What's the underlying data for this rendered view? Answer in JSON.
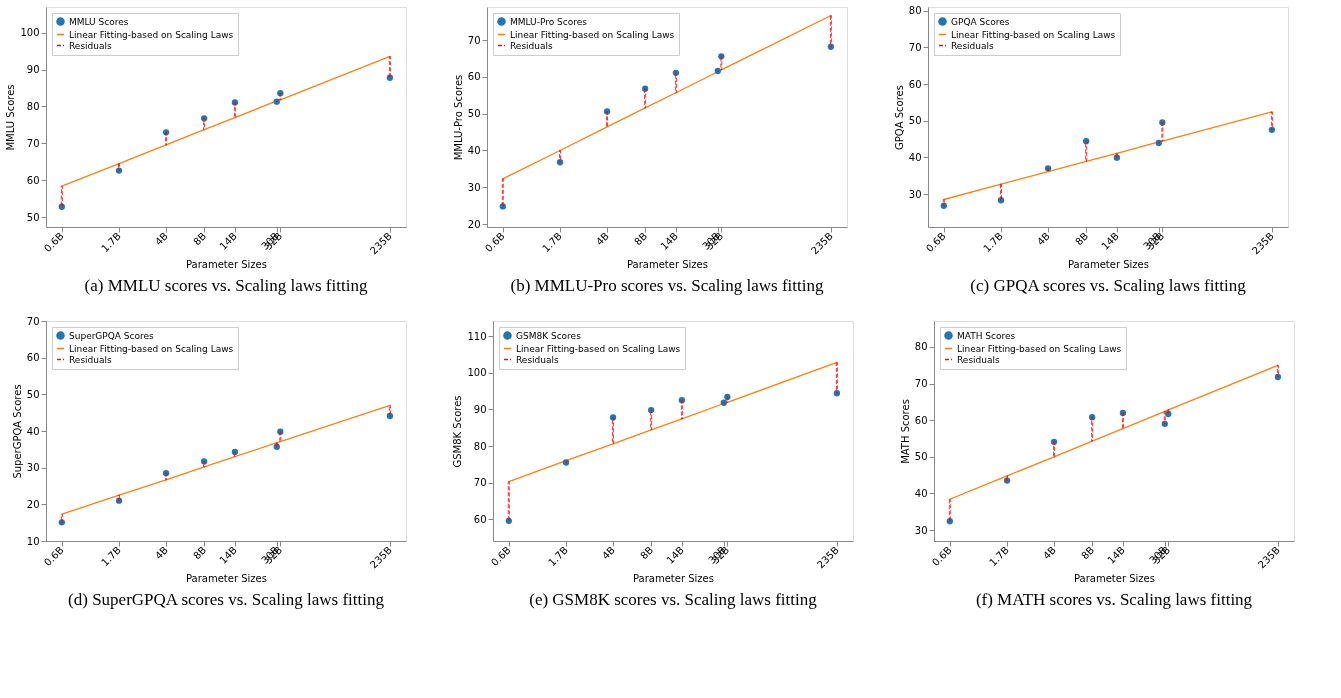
{
  "chart_data": [
    {
      "type": "scatter",
      "title": "(a)  MMLU scores vs. Scaling laws fitting",
      "xlabel": "Parameter Sizes",
      "ylabel": "MMLU Scores",
      "log": "x",
      "legend": "top left",
      "grid": false,
      "x": [
        0.6,
        1.7,
        4,
        8,
        14,
        30,
        32,
        235
      ],
      "xlim": [
        0.45,
        315
      ],
      "xticks": [
        {
          "value": 0.6,
          "label": "0.6B"
        },
        {
          "value": 1.7,
          "label": "1.7B"
        },
        {
          "value": 4,
          "label": "4B"
        },
        {
          "value": 8,
          "label": "8B"
        },
        {
          "value": 14,
          "label": "14B"
        },
        {
          "value": 30,
          "label": "30B"
        },
        {
          "value": 32,
          "label": "32B"
        },
        {
          "value": 235,
          "label": "235B"
        }
      ],
      "ylim": [
        47.3,
        107
      ],
      "yticks": [
        50,
        60,
        70,
        80,
        90,
        100
      ],
      "series": [
        {
          "name": "MMLU Scores",
          "type": "scatter",
          "marker": "circle",
          "color": "#1f77b4",
          "values": [
            52.8,
            62.6,
            73.0,
            76.8,
            81.1,
            81.3,
            83.6,
            87.8
          ]
        },
        {
          "name": "Linear Fitting-based on Scaling Laws",
          "type": "line",
          "color": "#ff7f0e",
          "values": [
            58.4,
            64.5,
            69.6,
            73.7,
            77.0,
            81.5,
            81.8,
            93.6
          ]
        },
        {
          "name": "Residuals",
          "type": "bar",
          "color": "#ff0000",
          "line_style": "dashed",
          "base": [
            52.8,
            62.6,
            73.0,
            76.8,
            81.1,
            81.3,
            83.6,
            87.8
          ],
          "values": [
            5.6,
            1.9,
            -3.4,
            -3.1,
            -4.1,
            0.2,
            -1.8,
            5.8
          ]
        }
      ]
    },
    {
      "type": "scatter",
      "title": "(b)  MMLU-Pro scores vs. Scaling laws fitting",
      "xlabel": "Parameter Sizes",
      "ylabel": "MMLU-Pro Scores",
      "log": "x",
      "legend": "top left",
      "grid": false,
      "x": [
        0.6,
        1.7,
        4,
        8,
        14,
        30,
        32,
        235
      ],
      "xlim": [
        0.45,
        315
      ],
      "xticks": [
        {
          "value": 0.6,
          "label": "0.6B"
        },
        {
          "value": 1.7,
          "label": "1.7B"
        },
        {
          "value": 4,
          "label": "4B"
        },
        {
          "value": 8,
          "label": "8B"
        },
        {
          "value": 14,
          "label": "14B"
        },
        {
          "value": 30,
          "label": "30B"
        },
        {
          "value": 32,
          "label": "32B"
        },
        {
          "value": 235,
          "label": "235B"
        }
      ],
      "ylim": [
        19.2,
        79
      ],
      "yticks": [
        20,
        30,
        40,
        50,
        60,
        70
      ],
      "series": [
        {
          "name": "MMLU-Pro Scores",
          "type": "scatter",
          "marker": "circle",
          "color": "#1f77b4",
          "values": [
            24.8,
            36.8,
            50.6,
            56.8,
            61.1,
            61.6,
            65.6,
            68.2
          ]
        },
        {
          "name": "Linear Fitting-based on Scaling Laws",
          "type": "line",
          "color": "#ff7f0e",
          "values": [
            32.3,
            40.0,
            46.4,
            51.6,
            55.7,
            61.4,
            61.9,
            76.7
          ]
        },
        {
          "name": "Residuals",
          "type": "bar",
          "color": "#ff0000",
          "line_style": "dashed",
          "base": [
            24.8,
            36.8,
            50.6,
            56.8,
            61.1,
            61.6,
            65.6,
            68.2
          ],
          "values": [
            7.5,
            3.2,
            -4.2,
            -5.2,
            -5.4,
            -0.2,
            -3.7,
            8.5
          ]
        }
      ]
    },
    {
      "type": "scatter",
      "title": "(c)  GPQA scores vs. Scaling laws fitting",
      "xlabel": "Parameter Sizes",
      "ylabel": "GPQA Scores",
      "log": "x",
      "legend": "top left",
      "grid": false,
      "x": [
        0.6,
        1.7,
        4,
        8,
        14,
        30,
        32,
        235
      ],
      "xlim": [
        0.45,
        315
      ],
      "xticks": [
        {
          "value": 0.6,
          "label": "0.6B"
        },
        {
          "value": 1.7,
          "label": "1.7B"
        },
        {
          "value": 4,
          "label": "4B"
        },
        {
          "value": 8,
          "label": "8B"
        },
        {
          "value": 14,
          "label": "14B"
        },
        {
          "value": 30,
          "label": "30B"
        },
        {
          "value": 32,
          "label": "32B"
        },
        {
          "value": 235,
          "label": "235B"
        }
      ],
      "ylim": [
        21,
        81
      ],
      "yticks": [
        30,
        40,
        50,
        60,
        70,
        80
      ],
      "series": [
        {
          "name": "GPQA Scores",
          "type": "scatter",
          "marker": "circle",
          "color": "#1f77b4",
          "values": [
            26.8,
            28.3,
            37.0,
            44.4,
            39.9,
            43.9,
            49.5,
            47.5
          ]
        },
        {
          "name": "Linear Fitting-based on Scaling Laws",
          "type": "line",
          "color": "#ff7f0e",
          "values": [
            28.5,
            32.7,
            36.1,
            38.9,
            41.1,
            44.2,
            44.4,
            52.4
          ]
        },
        {
          "name": "Residuals",
          "type": "bar",
          "color": "#ff0000",
          "line_style": "dashed",
          "base": [
            26.8,
            28.3,
            37.0,
            44.4,
            39.9,
            43.9,
            49.5,
            47.5
          ],
          "values": [
            1.7,
            4.4,
            -0.9,
            -5.5,
            1.2,
            0.3,
            -5.1,
            4.9
          ]
        }
      ]
    },
    {
      "type": "scatter",
      "title": "(d)  SuperGPQA scores vs. Scaling laws fitting",
      "xlabel": "Parameter Sizes",
      "ylabel": "SuperGPQA Scores",
      "log": "x",
      "legend": "top left",
      "grid": false,
      "x": [
        0.6,
        1.7,
        4,
        8,
        14,
        30,
        32,
        235
      ],
      "xlim": [
        0.45,
        315
      ],
      "xticks": [
        {
          "value": 0.6,
          "label": "0.6B"
        },
        {
          "value": 1.7,
          "label": "1.7B"
        },
        {
          "value": 4,
          "label": "4B"
        },
        {
          "value": 8,
          "label": "8B"
        },
        {
          "value": 14,
          "label": "14B"
        },
        {
          "value": 30,
          "label": "30B"
        },
        {
          "value": 32,
          "label": "32B"
        },
        {
          "value": 235,
          "label": "235B"
        }
      ],
      "ylim": [
        10,
        70
      ],
      "yticks": [
        10,
        20,
        30,
        40,
        50,
        60,
        70
      ],
      "series": [
        {
          "name": "SuperGPQA Scores",
          "type": "scatter",
          "marker": "circle",
          "color": "#1f77b4",
          "values": [
            15.1,
            21.0,
            28.5,
            31.7,
            34.3,
            35.7,
            39.8,
            44.1
          ]
        },
        {
          "name": "Linear Fitting-based on Scaling Laws",
          "type": "line",
          "color": "#ff7f0e",
          "values": [
            17.3,
            22.5,
            26.7,
            30.2,
            33.0,
            36.8,
            37.1,
            47.0
          ]
        },
        {
          "name": "Residuals",
          "type": "bar",
          "color": "#ff0000",
          "line_style": "dashed",
          "base": [
            15.1,
            21.0,
            28.5,
            31.7,
            34.3,
            35.7,
            39.8,
            44.1
          ],
          "values": [
            2.2,
            1.5,
            -1.8,
            -1.5,
            -1.3,
            1.1,
            -2.7,
            2.9
          ]
        }
      ]
    },
    {
      "type": "scatter",
      "title": "(e)  GSM8K scores vs. Scaling laws fitting",
      "xlabel": "Parameter Sizes",
      "ylabel": "GSM8K Scores",
      "log": "x",
      "legend": "top left",
      "grid": false,
      "x": [
        0.6,
        1.7,
        4,
        8,
        14,
        30,
        32,
        235
      ],
      "xlim": [
        0.45,
        315
      ],
      "xticks": [
        {
          "value": 0.6,
          "label": "0.6B"
        },
        {
          "value": 1.7,
          "label": "1.7B"
        },
        {
          "value": 4,
          "label": "4B"
        },
        {
          "value": 8,
          "label": "8B"
        },
        {
          "value": 14,
          "label": "14B"
        },
        {
          "value": 30,
          "label": "30B"
        },
        {
          "value": 32,
          "label": "32B"
        },
        {
          "value": 235,
          "label": "235B"
        }
      ],
      "ylim": [
        54.1,
        114.1
      ],
      "yticks": [
        60,
        70,
        80,
        90,
        100,
        110
      ],
      "series": [
        {
          "name": "GSM8K Scores",
          "type": "scatter",
          "marker": "circle",
          "color": "#1f77b4",
          "values": [
            59.6,
            75.5,
            87.8,
            89.8,
            92.5,
            91.8,
            93.4,
            94.4
          ]
        },
        {
          "name": "Linear Fitting-based on Scaling Laws",
          "type": "line",
          "color": "#ff7f0e",
          "values": [
            70.3,
            76.0,
            80.6,
            84.4,
            87.4,
            91.6,
            91.9,
            102.8
          ]
        },
        {
          "name": "Residuals",
          "type": "bar",
          "color": "#ff0000",
          "line_style": "dashed",
          "base": [
            59.6,
            75.5,
            87.8,
            89.8,
            92.5,
            91.8,
            93.4,
            94.4
          ],
          "values": [
            10.7,
            0.5,
            -7.2,
            -5.4,
            -5.1,
            -0.2,
            -1.5,
            8.4
          ]
        }
      ]
    },
    {
      "type": "scatter",
      "title": "(f)  MATH scores vs. Scaling laws fitting",
      "xlabel": "Parameter Sizes",
      "ylabel": "MATH Scores",
      "log": "x",
      "legend": "top left",
      "grid": false,
      "x": [
        0.6,
        1.7,
        4,
        8,
        14,
        30,
        32,
        235
      ],
      "xlim": [
        0.45,
        315
      ],
      "xticks": [
        {
          "value": 0.6,
          "label": "0.6B"
        },
        {
          "value": 1.7,
          "label": "1.7B"
        },
        {
          "value": 4,
          "label": "4B"
        },
        {
          "value": 8,
          "label": "8B"
        },
        {
          "value": 14,
          "label": "14B"
        },
        {
          "value": 30,
          "label": "30B"
        },
        {
          "value": 32,
          "label": "32B"
        },
        {
          "value": 235,
          "label": "235B"
        }
      ],
      "ylim": [
        27,
        87.1
      ],
      "yticks": [
        30,
        40,
        50,
        60,
        70,
        80
      ],
      "series": [
        {
          "name": "MATH Scores",
          "type": "scatter",
          "marker": "circle",
          "color": "#1f77b4",
          "values": [
            32.4,
            43.5,
            54.1,
            60.8,
            62.0,
            59.0,
            61.7,
            71.8
          ]
        },
        {
          "name": "Linear Fitting-based on Scaling Laws",
          "type": "line",
          "color": "#ff7f0e",
          "values": [
            38.4,
            44.8,
            50.0,
            54.3,
            57.7,
            62.4,
            62.8,
            75.0
          ]
        },
        {
          "name": "Residuals",
          "type": "bar",
          "color": "#ff0000",
          "line_style": "dashed",
          "base": [
            32.4,
            43.5,
            54.1,
            60.8,
            62.0,
            59.0,
            61.7,
            71.8
          ],
          "values": [
            6.0,
            1.3,
            -4.1,
            -6.5,
            -4.3,
            3.4,
            1.1,
            3.2
          ]
        }
      ]
    }
  ]
}
